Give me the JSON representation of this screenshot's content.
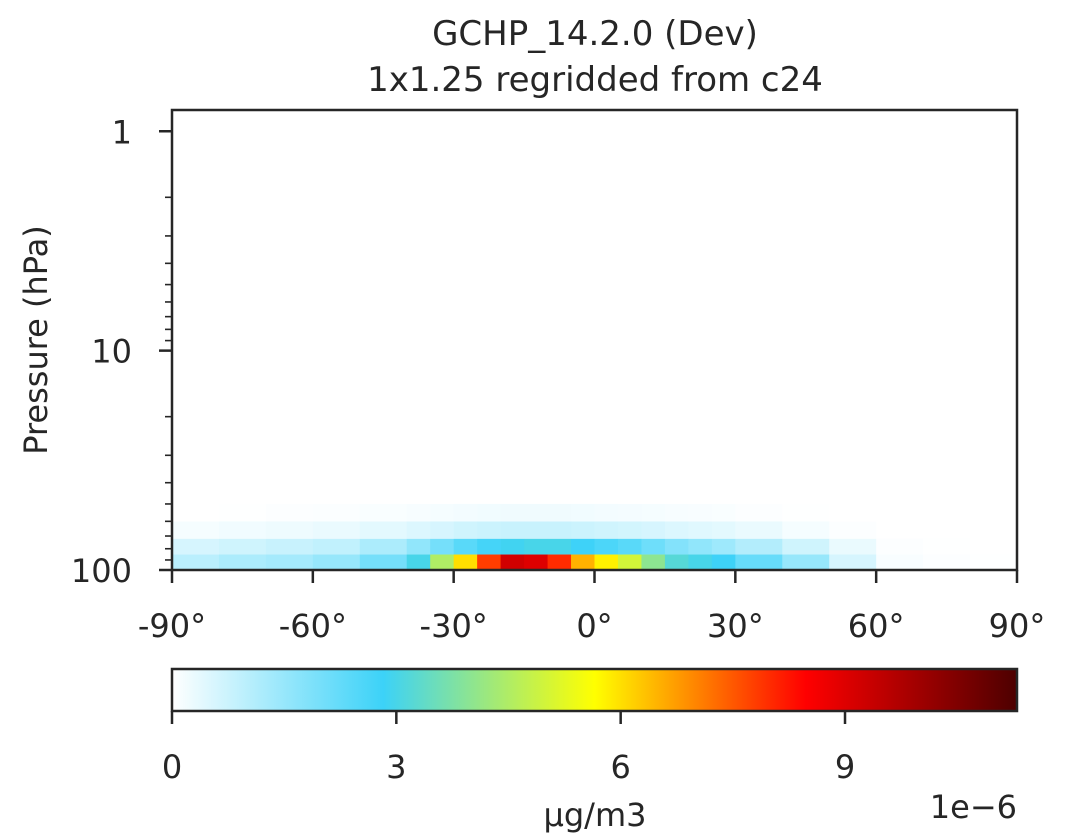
{
  "chart_data": {
    "type": "heatmap",
    "title": "GCHP_14.2.0 (Dev)",
    "subtitle": "1x1.25 regridded from c24",
    "xlabel": "",
    "ylabel": "Pressure (hPa)",
    "xlim": [
      -90,
      90
    ],
    "ylim": [
      100,
      0.8
    ],
    "yscale": "log",
    "x_ticks": [
      -90,
      -60,
      -30,
      0,
      30,
      60,
      90
    ],
    "x_tick_labels": [
      "-90°",
      "-60°",
      "-30°",
      "0°",
      "30°",
      "60°",
      "90°"
    ],
    "y_ticks": [
      1,
      10,
      100
    ],
    "y_tick_labels": [
      "1",
      "10",
      "100"
    ],
    "colorbar": {
      "label": "µg/m3",
      "multiplier_label": "1e−6",
      "range": [
        0,
        1.13e-05
      ],
      "ticks": [
        0,
        3e-06,
        6e-06,
        9e-06
      ],
      "tick_labels": [
        "0",
        "3",
        "6",
        "9"
      ],
      "colors": [
        "#ffffff",
        "#3cd2f8",
        "#ffff00",
        "#ff0000",
        "#4d0000"
      ]
    },
    "grid": false,
    "lat_bins": [
      -90,
      -80,
      -70,
      -60,
      -50,
      -40,
      -35,
      -30,
      -25,
      -20,
      -15,
      -10,
      -5,
      0,
      5,
      10,
      15,
      20,
      25,
      30,
      40,
      50,
      60,
      70,
      80,
      90
    ],
    "series": [
      {
        "pressure_level_hPa": [
          100,
          85
        ],
        "values": [
          1e-06,
          1.2e-06,
          1.3e-06,
          1.5e-06,
          2e-06,
          3e-06,
          4.5e-06,
          6e-06,
          7.8e-06,
          9.2e-06,
          9e-06,
          8e-06,
          6.5e-06,
          5.8e-06,
          5e-06,
          4e-06,
          3.2e-06,
          3e-06,
          2.8e-06,
          2.2e-06,
          1.5e-06,
          6e-07,
          1e-07,
          5e-08,
          2e-08
        ]
      },
      {
        "pressure_level_hPa": [
          85,
          72
        ],
        "values": [
          6e-07,
          7e-07,
          8e-07,
          9e-07,
          1.2e-06,
          1.6e-06,
          2e-06,
          2.4e-06,
          2.7e-06,
          2.9e-06,
          3e-06,
          3e-06,
          2.8e-06,
          2.6e-06,
          2.4e-06,
          2.1e-06,
          1.8e-06,
          1.6e-06,
          1.4e-06,
          1.1e-06,
          7e-07,
          3e-07,
          5e-08,
          2e-08,
          0.0
        ]
      },
      {
        "pressure_level_hPa": [
          72,
          60
        ],
        "values": [
          1.5e-07,
          2e-07,
          2.5e-07,
          3e-07,
          4e-07,
          5e-07,
          6e-07,
          7e-07,
          7.5e-07,
          8e-07,
          8e-07,
          8e-07,
          7.5e-07,
          7e-07,
          6.5e-07,
          6e-07,
          5e-07,
          4.5e-07,
          4e-07,
          3e-07,
          1.5e-07,
          5e-08,
          0.0,
          0.0,
          0.0
        ]
      },
      {
        "pressure_level_hPa": [
          60,
          50
        ],
        "values": [
          0.0,
          2e-08,
          4e-08,
          6e-08,
          8e-08,
          1.2e-07,
          1.5e-07,
          1.8e-07,
          2e-07,
          2.2e-07,
          2.2e-07,
          2.2e-07,
          2e-07,
          1.8e-07,
          1.6e-07,
          1.4e-07,
          1.2e-07,
          1e-07,
          8e-08,
          5e-08,
          2e-08,
          0.0,
          0.0,
          0.0,
          0.0
        ]
      }
    ]
  }
}
